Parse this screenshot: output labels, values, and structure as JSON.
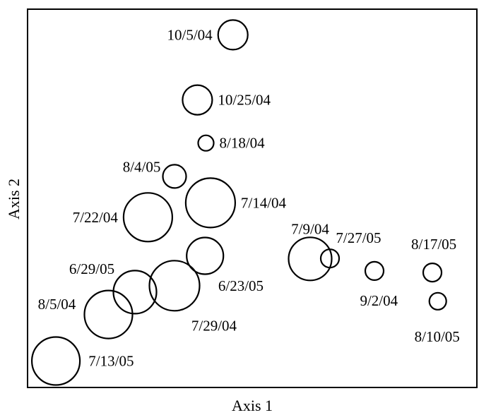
{
  "chart_data": {
    "type": "scatter",
    "title": "",
    "xlabel": "Axis 1",
    "ylabel": "Axis 2",
    "xlim": [
      0,
      100
    ],
    "ylim": [
      0,
      100
    ],
    "grid": false,
    "legend": "none",
    "marker": "open-circle",
    "points": [
      {
        "label": "10/5/04",
        "x": 45.7,
        "y": 93.2,
        "size": 42
      },
      {
        "label": "10/25/04",
        "x": 37.8,
        "y": 76.0,
        "size": 42
      },
      {
        "label": "8/18/04",
        "x": 39.7,
        "y": 64.6,
        "size": 22
      },
      {
        "label": "8/4/05",
        "x": 32.7,
        "y": 55.8,
        "size": 33
      },
      {
        "label": "7/14/04",
        "x": 40.7,
        "y": 48.8,
        "size": 70
      },
      {
        "label": "7/22/04",
        "x": 26.8,
        "y": 45.0,
        "size": 69
      },
      {
        "label": "7/9/04",
        "x": 62.9,
        "y": 34.0,
        "size": 61
      },
      {
        "label": "7/27/05",
        "x": 67.3,
        "y": 34.1,
        "size": 26
      },
      {
        "label": "6/23/05",
        "x": 39.5,
        "y": 34.8,
        "size": 52
      },
      {
        "label": "9/2/04",
        "x": 77.2,
        "y": 30.8,
        "size": 26
      },
      {
        "label": "8/17/05",
        "x": 90.1,
        "y": 30.4,
        "size": 26
      },
      {
        "label": "6/29/05",
        "x": 23.9,
        "y": 25.2,
        "size": 61
      },
      {
        "label": "7/29/04",
        "x": 32.7,
        "y": 26.9,
        "size": 71
      },
      {
        "label": "8/5/04",
        "x": 18.0,
        "y": 19.3,
        "size": 68
      },
      {
        "label": "8/10/05",
        "x": 91.3,
        "y": 22.8,
        "size": 24
      },
      {
        "label": "7/13/05",
        "x": 6.3,
        "y": 7.0,
        "size": 68
      }
    ]
  },
  "colors": {
    "marker_stroke": "#000000",
    "axis": "#000000",
    "background": "#ffffff"
  }
}
